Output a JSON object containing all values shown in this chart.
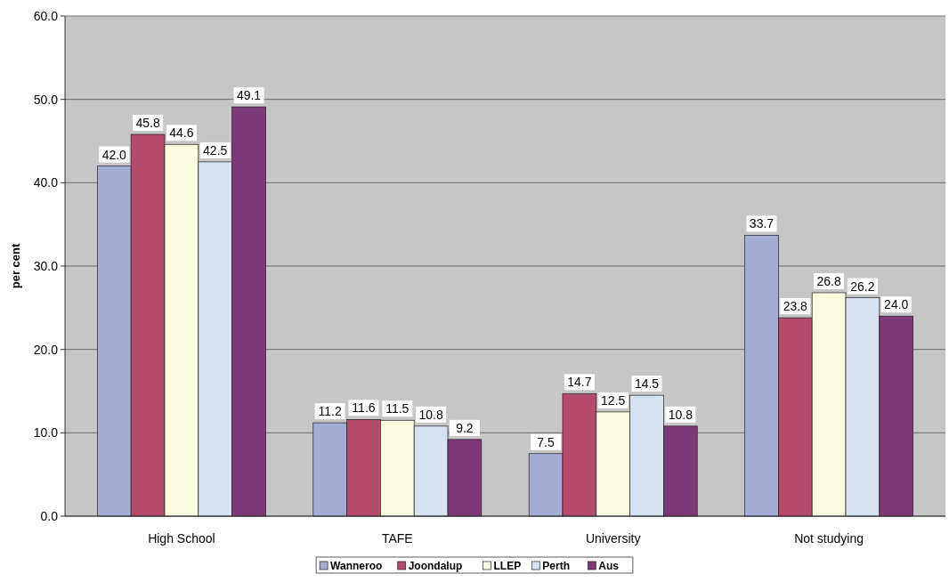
{
  "chart_data": {
    "type": "bar",
    "ylabel": "per cent",
    "categories": [
      "High School",
      "TAFE",
      "University",
      "Not studying"
    ],
    "series": [
      {
        "name": "Wanneroo",
        "color": "#a3acd2",
        "values": [
          42.0,
          11.2,
          7.5,
          33.7
        ],
        "value_labels": [
          "42.0",
          "11.2",
          "7.5",
          "33.7"
        ]
      },
      {
        "name": "Joondalup",
        "color": "#b44a6c",
        "values": [
          45.8,
          11.6,
          14.7,
          23.8
        ],
        "value_labels": [
          "45.8",
          "11.6",
          "14.7",
          "23.8"
        ]
      },
      {
        "name": "LLEP",
        "color": "#fbfbe0",
        "values": [
          44.6,
          11.5,
          12.5,
          26.8
        ],
        "value_labels": [
          "44.6",
          "11.5",
          "12.5",
          "26.8"
        ]
      },
      {
        "name": "Perth",
        "color": "#d6e2f2",
        "values": [
          42.5,
          10.8,
          14.5,
          26.2
        ],
        "value_labels": [
          "42.5",
          "10.8",
          "14.5",
          "26.2"
        ]
      },
      {
        "name": "Aus",
        "color": "#7c3877",
        "values": [
          49.1,
          9.2,
          10.8,
          24.0
        ],
        "value_labels": [
          "49.1",
          "9.2",
          "10.8",
          "24.0"
        ]
      }
    ],
    "ylim": [
      0,
      60
    ],
    "yticks": [
      {
        "value": 0,
        "label": "0.0"
      },
      {
        "value": 10,
        "label": "10.0"
      },
      {
        "value": 20,
        "label": "20.0"
      },
      {
        "value": 30,
        "label": "30.0"
      },
      {
        "value": 40,
        "label": "40.0"
      },
      {
        "value": 50,
        "label": "50.0"
      },
      {
        "value": 60,
        "label": "60.0"
      }
    ],
    "grid": "y",
    "legend": "bottom"
  }
}
